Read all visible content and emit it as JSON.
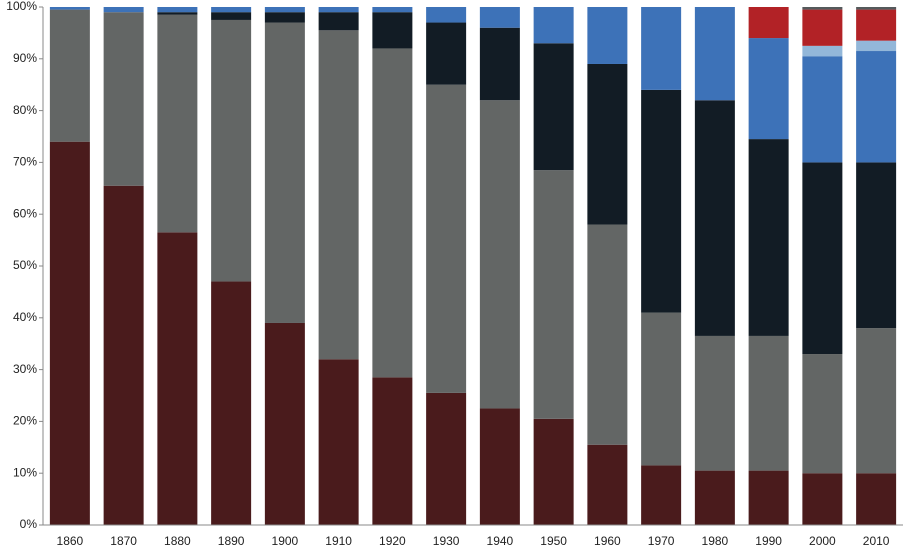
{
  "chart_data": {
    "type": "stacked_bar",
    "categories": [
      "1860",
      "1870",
      "1880",
      "1890",
      "1900",
      "1910",
      "1920",
      "1930",
      "1940",
      "1950",
      "1960",
      "1970",
      "1980",
      "1990",
      "2000",
      "2010"
    ],
    "series": [
      {
        "color": "#4a1b1c",
        "values": [
          74,
          65.5,
          56.5,
          47,
          39,
          32,
          28.5,
          25.5,
          22.5,
          20.5,
          15.5,
          11.5,
          10.5,
          10.5,
          10,
          10
        ]
      },
      {
        "color": "#636665",
        "values": [
          25.5,
          33.5,
          42,
          50.5,
          58,
          63.5,
          63.5,
          59.5,
          59.5,
          48,
          42.5,
          29.5,
          26,
          26,
          23,
          28
        ]
      },
      {
        "color": "#121c25",
        "values": [
          0,
          0,
          0.5,
          1.5,
          2,
          3.5,
          7,
          12,
          14,
          24.5,
          31,
          43,
          45.5,
          38,
          37,
          32
        ]
      },
      {
        "color": "#3d72b8",
        "values": [
          0.5,
          1,
          1,
          1,
          1,
          1,
          1,
          3,
          4,
          7,
          11,
          16,
          18,
          19.5,
          20.5,
          21.5
        ]
      },
      {
        "color": "#93b7d9",
        "values": [
          0,
          0,
          0,
          0,
          0,
          0,
          0,
          0,
          0,
          0,
          0,
          0,
          0,
          0,
          2,
          2
        ]
      },
      {
        "color": "#b22226",
        "values": [
          0,
          0,
          0,
          0,
          0,
          0,
          0,
          0,
          0,
          0,
          0,
          0,
          0,
          6,
          7,
          6
        ]
      },
      {
        "color": "#555a5c",
        "values": [
          0,
          0,
          0,
          0,
          0,
          0,
          0,
          0,
          0,
          0,
          0,
          0,
          0,
          0,
          0.5,
          0.5
        ]
      }
    ],
    "ylim": [
      0,
      100
    ],
    "yticks": [
      {
        "value": 0,
        "label": "0%"
      },
      {
        "value": 10,
        "label": "10%"
      },
      {
        "value": 20,
        "label": "20%"
      },
      {
        "value": 30,
        "label": "30%"
      },
      {
        "value": 40,
        "label": "40%"
      },
      {
        "value": 50,
        "label": "50%"
      },
      {
        "value": 60,
        "label": "60%"
      },
      {
        "value": 70,
        "label": "70%"
      },
      {
        "value": 80,
        "label": "80%"
      },
      {
        "value": 90,
        "label": "90%"
      },
      {
        "value": 100,
        "label": "100%"
      }
    ],
    "grid": false
  }
}
